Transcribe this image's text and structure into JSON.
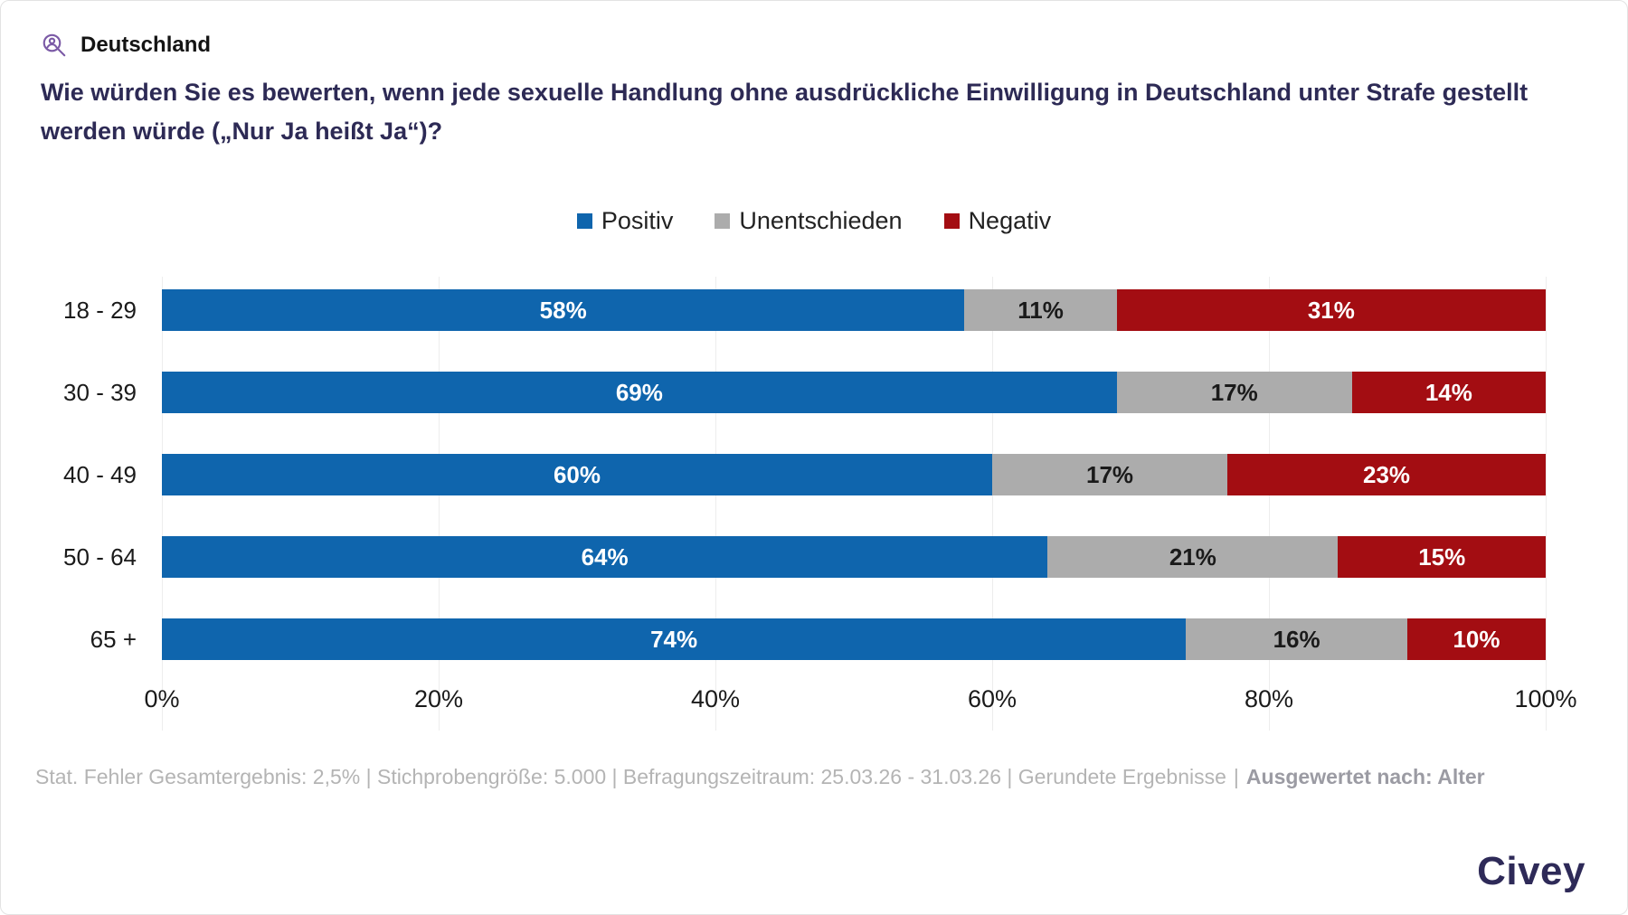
{
  "header": {
    "region": "Deutschland",
    "icon": "person-magnifier-icon",
    "icon_color": "#7B5AA6"
  },
  "question": "Wie würden Sie es bewerten, wenn jede sexuelle Handlung ohne ausdrückliche Einwilligung in Deutschland unter Strafe gestellt werden würde („Nur Ja heißt Ja“)?",
  "chart_data": {
    "type": "bar",
    "orientation": "horizontal",
    "stacked": true,
    "categories": [
      "18 - 29",
      "30 - 39",
      "40 - 49",
      "50 - 64",
      "65 +"
    ],
    "series": [
      {
        "name": "Positiv",
        "color": "#0F65AD",
        "text_color": "#FFFFFF",
        "values": [
          58,
          69,
          60,
          64,
          74
        ]
      },
      {
        "name": "Unentschieden",
        "color": "#ACACAC",
        "text_color": "#1A1A1A",
        "values": [
          11,
          17,
          17,
          21,
          16
        ]
      },
      {
        "name": "Negativ",
        "color": "#A30D12",
        "text_color": "#FFFFFF",
        "values": [
          31,
          14,
          23,
          15,
          10
        ]
      }
    ],
    "x_ticks": [
      "0%",
      "20%",
      "40%",
      "60%",
      "80%",
      "100%"
    ],
    "xlim": [
      0,
      100
    ],
    "value_suffix": "%",
    "legend_position": "top-center",
    "grid": true
  },
  "footer": {
    "stats": "Stat. Fehler Gesamtergebnis: 2,5% | Stichprobengröße: 5.000 | Befragungszeitraum: 25.03.26 - 31.03.26 | Gerundete Ergebnisse",
    "separator": "|",
    "evaluated_by": "Ausgewertet nach: Alter"
  },
  "branding": {
    "logo_text": "Civey",
    "logo_color": "#2E2A58"
  }
}
